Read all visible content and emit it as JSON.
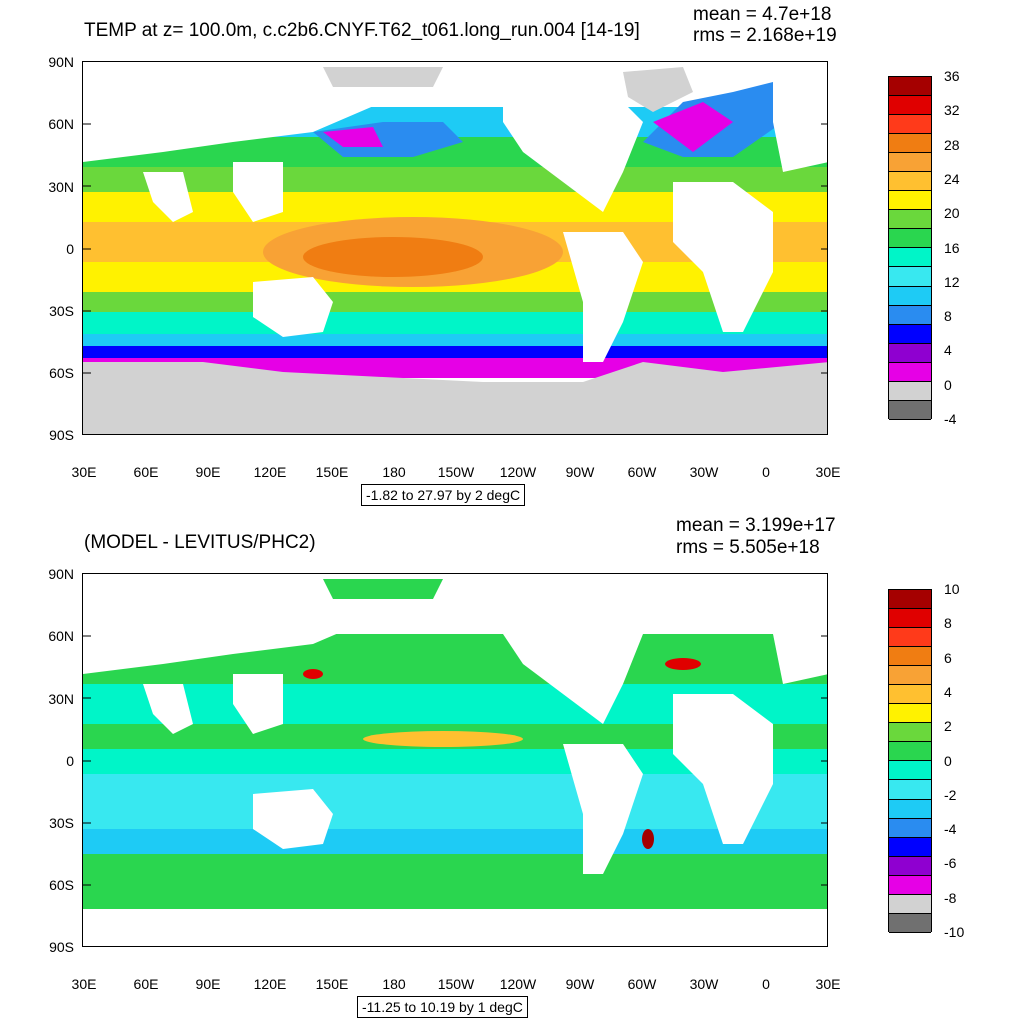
{
  "top_panel": {
    "title": "TEMP at z= 100.0m, c.c2b6.CNYF.T62_t061.long_run.004 [14-19]",
    "mean": "mean = 4.7e+18",
    "rms": "rms = 2.168e+19",
    "range_text": "-1.82 to 27.97 by 2 degC",
    "colorbar_labels": [
      "36",
      "32",
      "28",
      "24",
      "20",
      "16",
      "12",
      "8",
      "4",
      "0",
      "-4"
    ],
    "colorbar_colors": [
      "#a50000",
      "#e00000",
      "#ff3a1a",
      "#f07d12",
      "#f8a235",
      "#ffc030",
      "#fff200",
      "#6ad83c",
      "#2ad64f",
      "#00f5c8",
      "#38e8f0",
      "#1ecbf5",
      "#2a8cf0",
      "#0000ff",
      "#8f00d0",
      "#e600e6",
      "#d2d2d2",
      "#707070"
    ]
  },
  "bottom_panel": {
    "title": "(MODEL - LEVITUS/PHC2)",
    "mean": "mean = 3.199e+17",
    "rms": "rms = 5.505e+18",
    "range_text": "-11.25 to 10.19 by 1 degC",
    "colorbar_labels": [
      "10",
      "8",
      "6",
      "4",
      "2",
      "0",
      "-2",
      "-4",
      "-6",
      "-8",
      "-10"
    ],
    "colorbar_colors": [
      "#a50000",
      "#e00000",
      "#ff3a1a",
      "#f07d12",
      "#f8a235",
      "#ffc030",
      "#fff200",
      "#6ad83c",
      "#2ad64f",
      "#00f5c8",
      "#38e8f0",
      "#1ecbf5",
      "#2a8cf0",
      "#0000ff",
      "#8f00d0",
      "#e600e6",
      "#d2d2d2",
      "#707070"
    ]
  },
  "axes": {
    "lat_labels": [
      "90N",
      "60N",
      "30N",
      "0",
      "30S",
      "60S",
      "90S"
    ],
    "lon_labels": [
      "30E",
      "60E",
      "90E",
      "120E",
      "150E",
      "180",
      "150W",
      "120W",
      "90W",
      "60W",
      "30W",
      "0",
      "30E"
    ]
  }
}
